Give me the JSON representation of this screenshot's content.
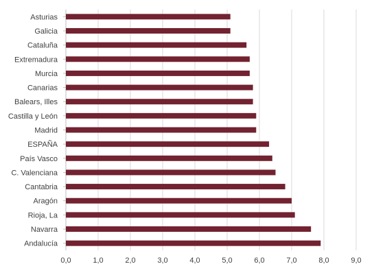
{
  "chart_data": {
    "type": "bar",
    "orientation": "horizontal",
    "categories": [
      "Asturias",
      "Galicia",
      "Cataluña",
      "Extremadura",
      "Murcia",
      "Canarias",
      "Balears, Illes",
      "Castilla y León",
      "Madrid",
      "ESPAÑA",
      "País Vasco",
      "C. Valenciana",
      "Cantabria",
      "Aragón",
      "Rioja, La",
      "Navarra",
      "Andalucía"
    ],
    "values": [
      5.1,
      5.1,
      5.6,
      5.7,
      5.7,
      5.8,
      5.8,
      5.9,
      5.9,
      6.3,
      6.4,
      6.5,
      6.8,
      7.0,
      7.1,
      7.6,
      7.9
    ],
    "xlim": [
      0,
      9
    ],
    "x_ticks": [
      "0,0",
      "1,0",
      "2,0",
      "3,0",
      "4,0",
      "5,0",
      "6,0",
      "7,0",
      "8,0",
      "9,0"
    ],
    "grid": "vertical",
    "legend": "none",
    "title": "",
    "xlabel": "",
    "ylabel": "",
    "bar_color": "#722230",
    "grid_color": "#d9d9d9",
    "axis_color": "#bfbfbf",
    "text_color": "#404040"
  }
}
